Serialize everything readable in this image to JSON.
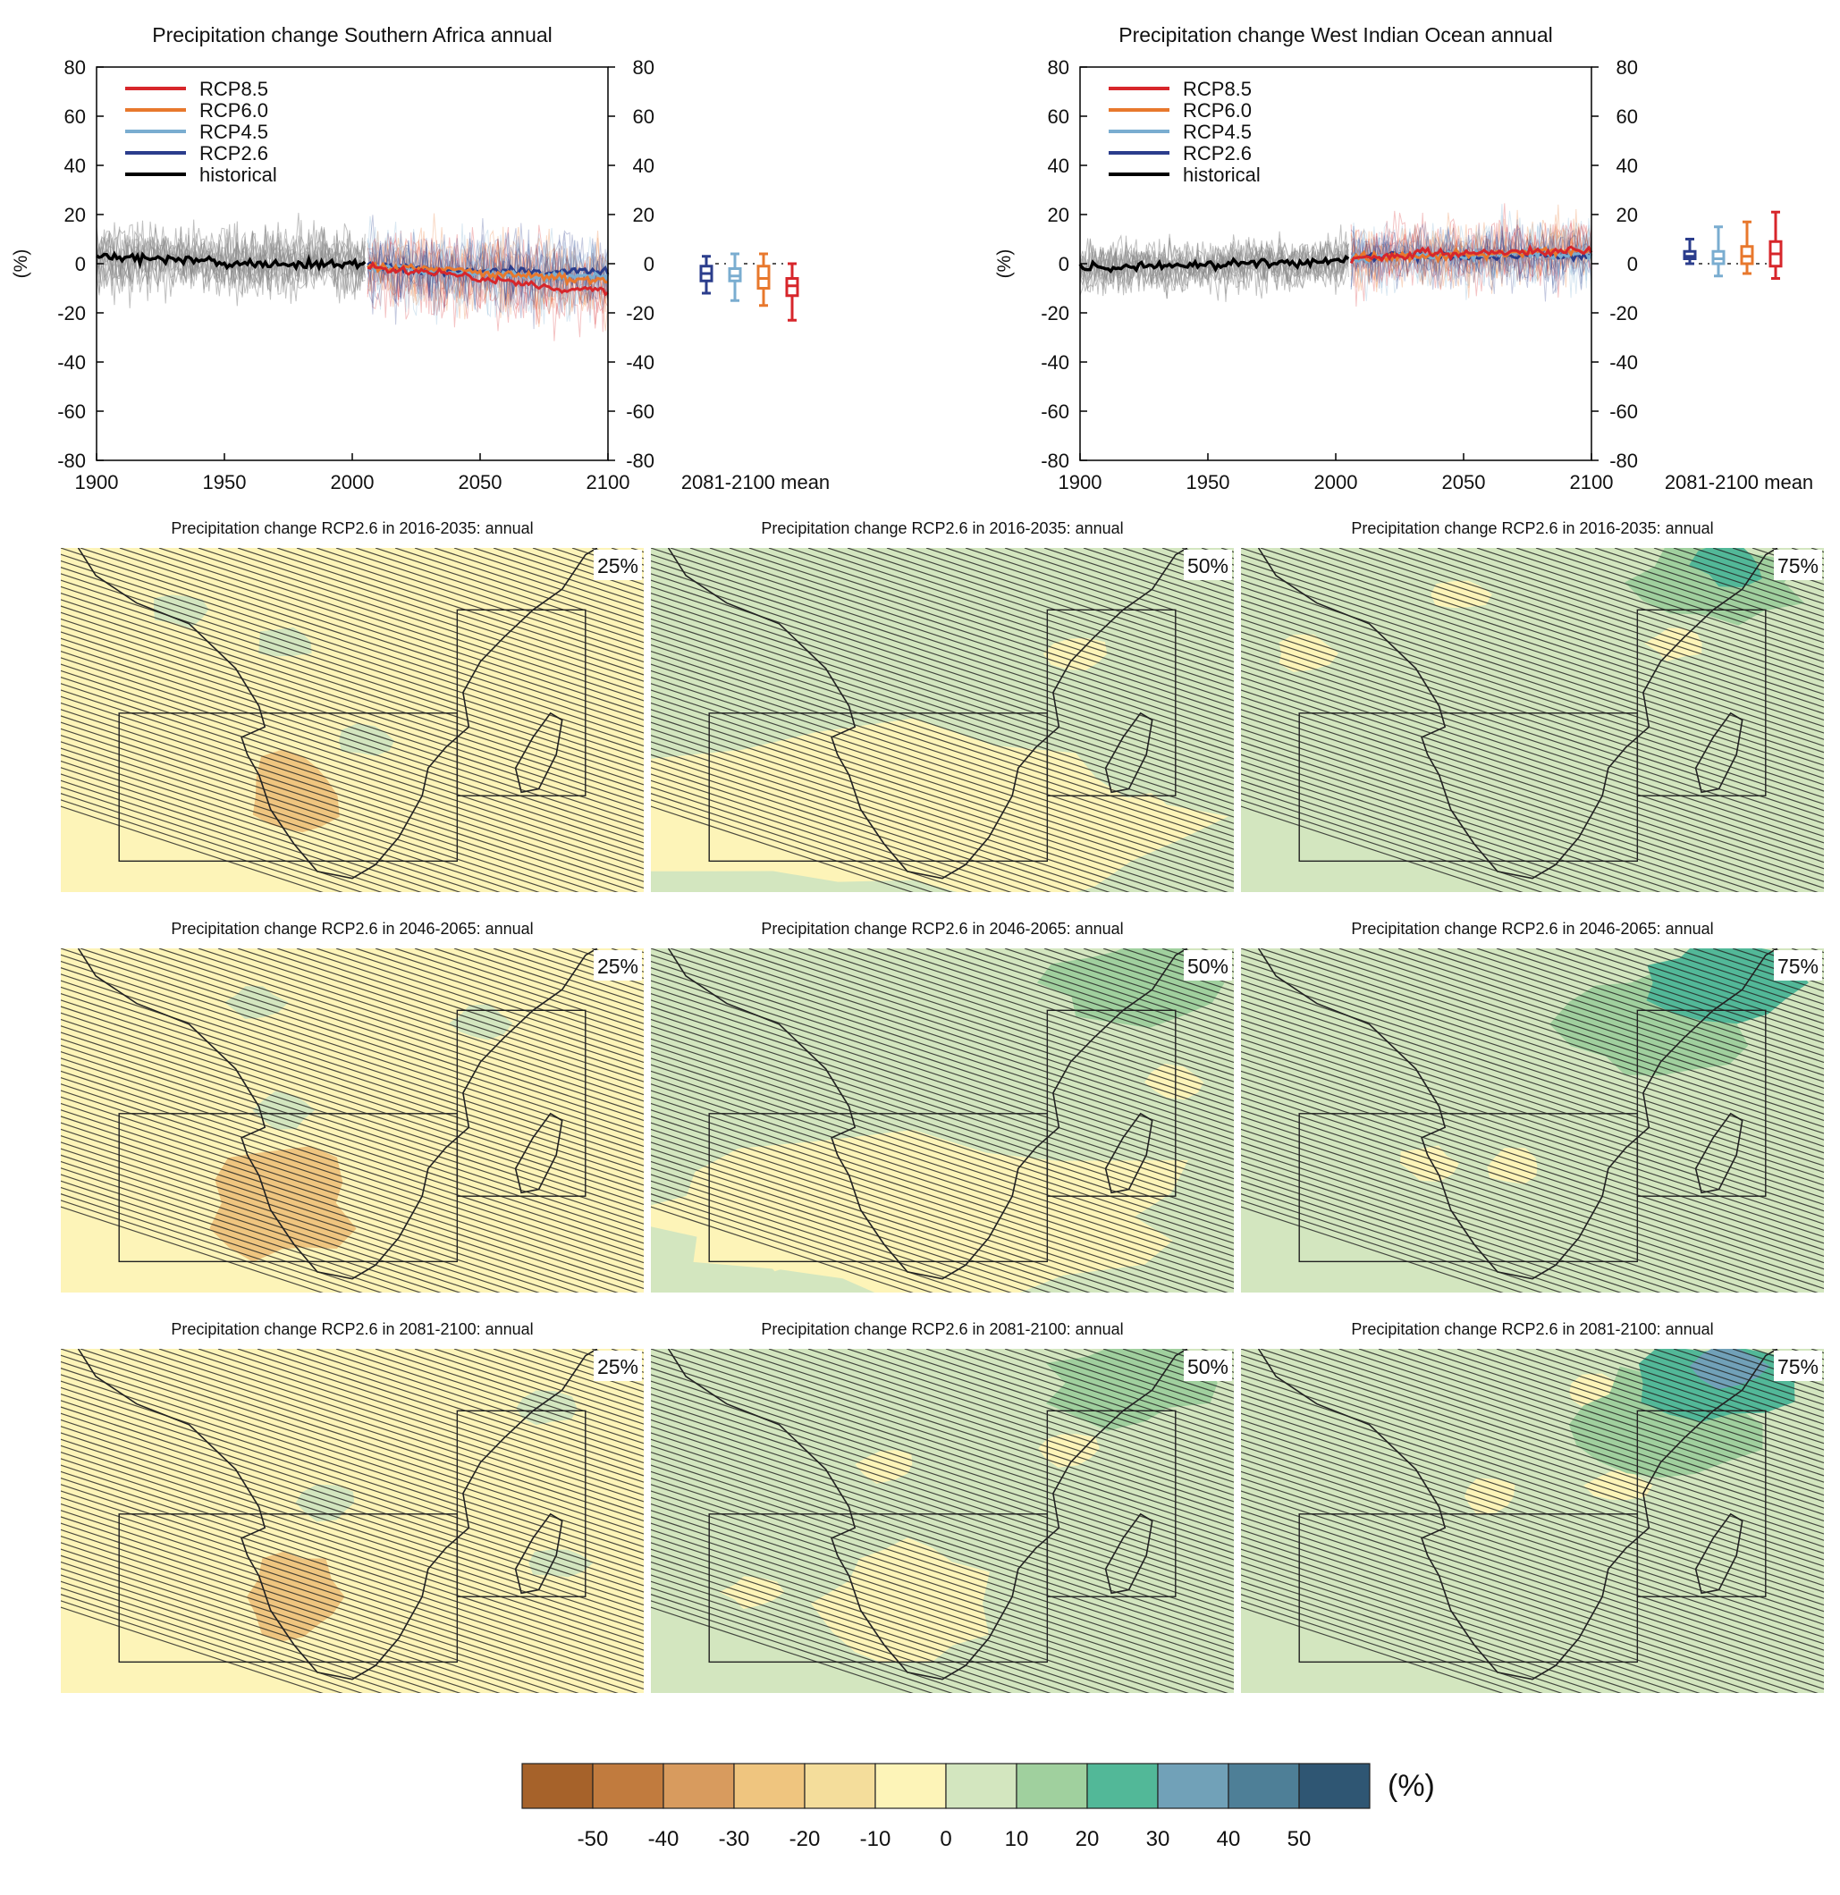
{
  "chart_data": [
    {
      "type": "line",
      "title": "Precipitation change Southern Africa annual",
      "ylabel": "(%)",
      "xlim": [
        1900,
        2100
      ],
      "ylim": [
        -80,
        80
      ],
      "x_ticks": [
        "1900",
        "1950",
        "2000",
        "2050",
        "2100"
      ],
      "y_ticks": [
        "80",
        "60",
        "40",
        "20",
        "0",
        "-20",
        "-40",
        "-60",
        "-80"
      ],
      "legend_position": "top-left",
      "grid": false,
      "series": [
        {
          "name": "RCP8.5",
          "color": "#d7262b",
          "x": [
            2006,
            2020,
            2035,
            2050,
            2065,
            2080,
            2100
          ],
          "values": [
            -1,
            -3,
            -4,
            -6,
            -8,
            -10,
            -11
          ]
        },
        {
          "name": "RCP6.0",
          "color": "#e8782d",
          "x": [
            2006,
            2020,
            2035,
            2050,
            2065,
            2080,
            2100
          ],
          "values": [
            -1,
            -2,
            -2,
            -4,
            -5,
            -6,
            -7
          ]
        },
        {
          "name": "RCP4.5",
          "color": "#7aadd0",
          "x": [
            2006,
            2020,
            2035,
            2050,
            2065,
            2080,
            2100
          ],
          "values": [
            -1,
            -2,
            -3,
            -4,
            -5,
            -5,
            -5
          ]
        },
        {
          "name": "RCP2.6",
          "color": "#2b3d8c",
          "x": [
            2006,
            2020,
            2035,
            2050,
            2065,
            2080,
            2100
          ],
          "values": [
            -1,
            -2,
            -3,
            -3,
            -3,
            -3,
            -3
          ]
        },
        {
          "name": "historical",
          "color": "#000000",
          "x": [
            1900,
            1920,
            1940,
            1960,
            1980,
            2000,
            2005
          ],
          "values": [
            3,
            2,
            1,
            0,
            0,
            0,
            0
          ]
        }
      ],
      "boxplot": {
        "label": "2081-2100 mean",
        "boxes": [
          {
            "series": "RCP2.6",
            "color": "#2b3d8c",
            "min": -12,
            "q1": -7,
            "median": -4,
            "q3": -1,
            "max": 3
          },
          {
            "series": "RCP4.5",
            "color": "#7aadd0",
            "min": -15,
            "q1": -7,
            "median": -5,
            "q3": -2,
            "max": 4
          },
          {
            "series": "RCP6.0",
            "color": "#e8782d",
            "min": -17,
            "q1": -10,
            "median": -6,
            "q3": -1,
            "max": 4
          },
          {
            "series": "RCP8.5",
            "color": "#d7262b",
            "min": -23,
            "q1": -13,
            "median": -9,
            "q3": -6,
            "max": 0
          }
        ]
      }
    },
    {
      "type": "line",
      "title": "Precipitation change West Indian Ocean annual",
      "ylabel": "(%)",
      "xlim": [
        1900,
        2100
      ],
      "ylim": [
        -80,
        80
      ],
      "x_ticks": [
        "1900",
        "1950",
        "2000",
        "2050",
        "2100"
      ],
      "y_ticks": [
        "80",
        "60",
        "40",
        "20",
        "0",
        "-20",
        "-40",
        "-60",
        "-80"
      ],
      "legend_position": "top-left",
      "grid": false,
      "series": [
        {
          "name": "RCP8.5",
          "color": "#d7262b",
          "x": [
            2006,
            2020,
            2035,
            2050,
            2065,
            2080,
            2100
          ],
          "values": [
            2,
            3,
            4,
            4,
            5,
            5,
            6
          ]
        },
        {
          "name": "RCP6.0",
          "color": "#e8782d",
          "x": [
            2006,
            2020,
            2035,
            2050,
            2065,
            2080,
            2100
          ],
          "values": [
            2,
            3,
            3,
            4,
            4,
            5,
            5
          ]
        },
        {
          "name": "RCP4.5",
          "color": "#7aadd0",
          "x": [
            2006,
            2020,
            2035,
            2050,
            2065,
            2080,
            2100
          ],
          "values": [
            2,
            3,
            3,
            3,
            4,
            4,
            4
          ]
        },
        {
          "name": "RCP2.6",
          "color": "#2b3d8c",
          "x": [
            2006,
            2020,
            2035,
            2050,
            2065,
            2080,
            2100
          ],
          "values": [
            2,
            3,
            3,
            3,
            3,
            3,
            3
          ]
        },
        {
          "name": "historical",
          "color": "#000000",
          "x": [
            1900,
            1920,
            1940,
            1960,
            1980,
            2000,
            2005
          ],
          "values": [
            -2,
            -1,
            -1,
            0,
            0,
            1,
            2
          ]
        }
      ],
      "boxplot": {
        "label": "2081-2100 mean",
        "boxes": [
          {
            "series": "RCP2.6",
            "color": "#2b3d8c",
            "min": 0,
            "q1": 2,
            "median": 3,
            "q3": 5,
            "max": 10
          },
          {
            "series": "RCP4.5",
            "color": "#7aadd0",
            "min": -5,
            "q1": 0,
            "median": 2,
            "q3": 5,
            "max": 15
          },
          {
            "series": "RCP6.0",
            "color": "#e8782d",
            "min": -4,
            "q1": 0,
            "median": 3,
            "q3": 7,
            "max": 17
          },
          {
            "series": "RCP8.5",
            "color": "#d7262b",
            "min": -6,
            "q1": -1,
            "median": 4,
            "q3": 9,
            "max": 21
          }
        ]
      }
    },
    {
      "type": "heatmap",
      "maps": [
        {
          "title": "Precipitation change RCP2.6 in 2016-2035: annual",
          "percentile": "25%",
          "base_class": "0 to -10",
          "features": [
            {
              "value_class": "-10 to -20",
              "area": "South Africa interior"
            }
          ]
        },
        {
          "title": "Precipitation change RCP2.6 in 2016-2035: annual",
          "percentile": "50%",
          "base_class": "0 to 10",
          "features": [
            {
              "value_class": "0 to -10",
              "area": "Southern Africa and southern ocean"
            }
          ]
        },
        {
          "title": "Precipitation change RCP2.6 in 2016-2035: annual",
          "percentile": "75%",
          "base_class": "0 to 10",
          "features": [
            {
              "value_class": "10 to 20",
              "area": "Horn of Africa"
            },
            {
              "value_class": "20 to 30",
              "area": "Horn of Africa core"
            }
          ]
        },
        {
          "title": "Precipitation change RCP2.6 in 2046-2065: annual",
          "percentile": "25%",
          "base_class": "0 to -10",
          "features": [
            {
              "value_class": "-10 to -20",
              "area": "South Africa and west coast"
            }
          ]
        },
        {
          "title": "Precipitation change RCP2.6 in 2046-2065: annual",
          "percentile": "50%",
          "base_class": "0 to 10",
          "features": [
            {
              "value_class": "0 to -10",
              "area": "Southern Africa and southern ocean"
            },
            {
              "value_class": "10 to 20",
              "area": "Horn of Africa"
            }
          ]
        },
        {
          "title": "Precipitation change RCP2.6 in 2046-2065: annual",
          "percentile": "75%",
          "base_class": "0 to 10",
          "features": [
            {
              "value_class": "10 to 20",
              "area": "East Africa"
            },
            {
              "value_class": "20 to 30",
              "area": "Horn of Africa"
            }
          ]
        },
        {
          "title": "Precipitation change RCP2.6 in 2081-2100: annual",
          "percentile": "25%",
          "base_class": "0 to -10",
          "features": [
            {
              "value_class": "-10 to -20",
              "area": "South Africa interior"
            }
          ]
        },
        {
          "title": "Precipitation change RCP2.6 in 2081-2100: annual",
          "percentile": "50%",
          "base_class": "0 to 10",
          "features": [
            {
              "value_class": "0 to -10",
              "area": "Southern Africa"
            },
            {
              "value_class": "10 to 20",
              "area": "Horn of Africa"
            }
          ]
        },
        {
          "title": "Precipitation change RCP2.6 in 2081-2100: annual",
          "percentile": "75%",
          "base_class": "0 to 10",
          "features": [
            {
              "value_class": "10 to 20",
              "area": "East Africa"
            },
            {
              "value_class": "20 to 30",
              "area": "Horn of Africa"
            },
            {
              "value_class": "30 to 40",
              "area": "Horn of Africa core"
            }
          ]
        }
      ],
      "colorbar": {
        "unit": "(%)",
        "colors": [
          "#a6622a",
          "#c17b3e",
          "#d89b5e",
          "#efc57f",
          "#f4dd9b",
          "#fdf4b8",
          "#d3e6bf",
          "#a0d09e",
          "#52b898",
          "#71a1b8",
          "#4e7f97",
          "#2f5673"
        ],
        "tick_labels": [
          "-50",
          "-40",
          "-30",
          "-20",
          "-10",
          "0",
          "10",
          "20",
          "30",
          "40",
          "50"
        ]
      }
    }
  ]
}
